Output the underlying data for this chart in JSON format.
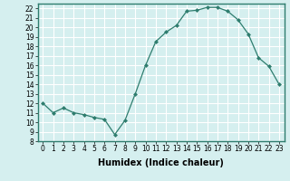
{
  "xlabel": "Humidex (Indice chaleur)",
  "x_values": [
    0,
    1,
    2,
    3,
    4,
    5,
    6,
    7,
    8,
    9,
    10,
    11,
    12,
    13,
    14,
    15,
    16,
    17,
    18,
    19,
    20,
    21,
    22,
    23
  ],
  "y_values": [
    12,
    11,
    11.5,
    11,
    10.8,
    10.5,
    10.3,
    8.7,
    10.2,
    13,
    16,
    18.5,
    19.5,
    20.2,
    21.7,
    21.8,
    22.1,
    22.1,
    21.7,
    20.8,
    19.3,
    16.8,
    15.9,
    14
  ],
  "line_color": "#2e7d6e",
  "marker": "D",
  "marker_size": 2,
  "background_color": "#d5efef",
  "grid_color": "#ffffff",
  "ylim": [
    8,
    22.5
  ],
  "xlim": [
    -0.5,
    23.5
  ],
  "yticks": [
    8,
    9,
    10,
    11,
    12,
    13,
    14,
    15,
    16,
    17,
    18,
    19,
    20,
    21,
    22
  ],
  "xticks": [
    0,
    1,
    2,
    3,
    4,
    5,
    6,
    7,
    8,
    9,
    10,
    11,
    12,
    13,
    14,
    15,
    16,
    17,
    18,
    19,
    20,
    21,
    22,
    23
  ],
  "tick_fontsize": 5.5,
  "xlabel_fontsize": 7,
  "label_color": "#000000",
  "spine_color": "#2e7d6e"
}
